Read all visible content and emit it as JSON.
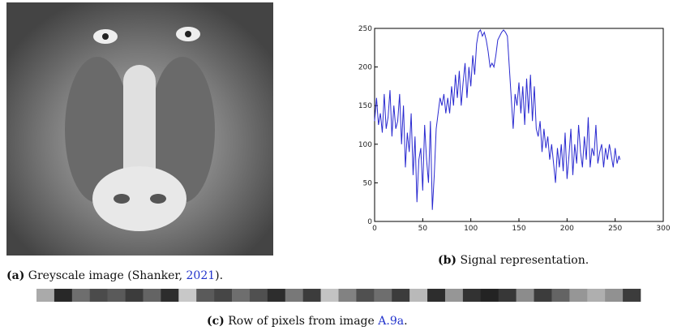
{
  "figure": {
    "panel_a": {
      "label": "(a)",
      "text": "Greyscale image (Shanker, ",
      "citation": "2021",
      "text_end": ")."
    },
    "panel_b": {
      "label": "(b)",
      "text": "Signal representation."
    },
    "panel_c": {
      "label": "(c)",
      "text": "Row of pixels from image ",
      "reference": "A.9a",
      "text_end": "."
    },
    "pixel_row": {
      "values": [
        170,
        40,
        110,
        75,
        90,
        60,
        100,
        45,
        200,
        90,
        70,
        110,
        80,
        45,
        120,
        60,
        195,
        130,
        80,
        110,
        60,
        185,
        45,
        150,
        50,
        35,
        55,
        140,
        60,
        100,
        150,
        175,
        145,
        60
      ]
    }
  },
  "chart_data": {
    "type": "line",
    "x": [
      0,
      2,
      4,
      6,
      8,
      10,
      12,
      14,
      16,
      18,
      20,
      22,
      24,
      26,
      28,
      30,
      32,
      34,
      36,
      38,
      40,
      42,
      44,
      46,
      48,
      50,
      52,
      54,
      56,
      58,
      60,
      62,
      64,
      66,
      68,
      70,
      72,
      74,
      76,
      78,
      80,
      82,
      84,
      86,
      88,
      90,
      92,
      94,
      96,
      98,
      100,
      102,
      104,
      106,
      108,
      110,
      112,
      114,
      116,
      118,
      120,
      122,
      124,
      126,
      128,
      130,
      132,
      134,
      136,
      138,
      140,
      142,
      144,
      146,
      148,
      150,
      152,
      154,
      156,
      158,
      160,
      162,
      164,
      166,
      168,
      170,
      172,
      174,
      176,
      178,
      180,
      182,
      184,
      186,
      188,
      190,
      192,
      194,
      196,
      198,
      200,
      202,
      204,
      206,
      208,
      210,
      212,
      214,
      216,
      218,
      220,
      222,
      224,
      226,
      228,
      230,
      232,
      234,
      236,
      238,
      240,
      242,
      244,
      246,
      248,
      250,
      252,
      254,
      255
    ],
    "series": [
      {
        "color": "#2a2ad0",
        "values": [
          130,
          160,
          125,
          140,
          115,
          165,
          120,
          135,
          170,
          110,
          150,
          120,
          130,
          165,
          100,
          150,
          70,
          115,
          90,
          140,
          60,
          110,
          25,
          80,
          95,
          40,
          125,
          80,
          50,
          130,
          15,
          60,
          120,
          140,
          160,
          150,
          165,
          140,
          160,
          140,
          175,
          150,
          190,
          160,
          195,
          150,
          180,
          205,
          160,
          200,
          175,
          215,
          190,
          230,
          245,
          248,
          240,
          245,
          235,
          220,
          200,
          205,
          200,
          215,
          235,
          240,
          245,
          248,
          245,
          240,
          200,
          160,
          120,
          165,
          150,
          180,
          140,
          175,
          125,
          185,
          140,
          190,
          130,
          175,
          120,
          110,
          130,
          90,
          120,
          95,
          110,
          80,
          100,
          75,
          50,
          95,
          70,
          100,
          65,
          115,
          55,
          85,
          120,
          60,
          100,
          75,
          125,
          90,
          70,
          110,
          80,
          135,
          70,
          95,
          85,
          125,
          75,
          90,
          100,
          70,
          95,
          80,
          100,
          85,
          70,
          95,
          75,
          85,
          80
        ]
      }
    ],
    "xlim": [
      0,
      300
    ],
    "xticks": [
      0,
      50,
      100,
      150,
      200,
      250,
      300
    ],
    "ylim": [
      0,
      250
    ],
    "yticks": [
      0,
      50,
      100,
      150,
      200,
      250
    ]
  }
}
